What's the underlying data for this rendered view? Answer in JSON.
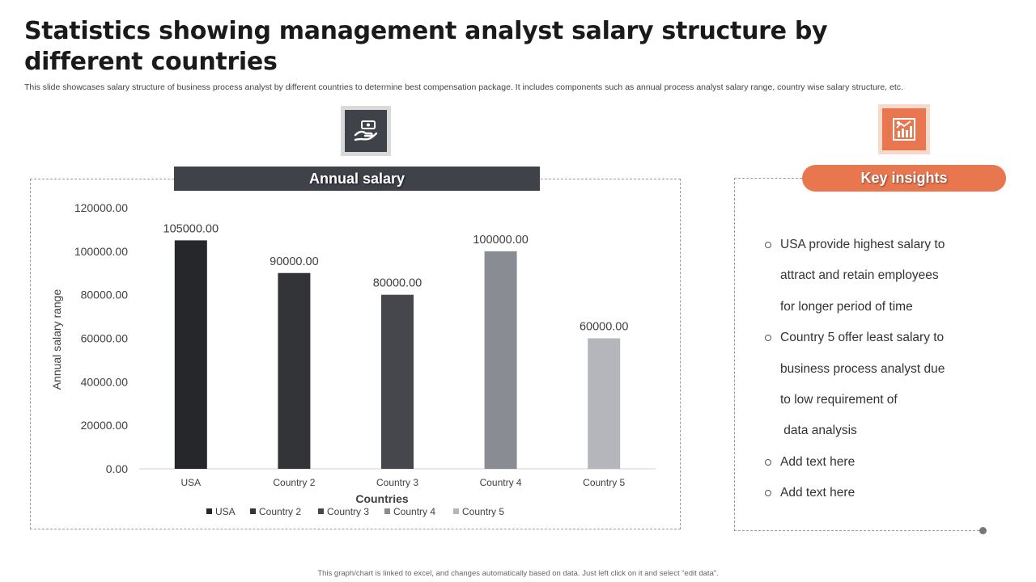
{
  "header": {
    "title": "Statistics showing management analyst salary structure by different countries",
    "subtitle": "This slide showcases salary structure of business process analyst by different countries to determine best compensation package. It includes components such as annual process analyst salary range, country wise salary structure, etc."
  },
  "icons": {
    "left": "money-hand-icon",
    "right": "growth-chart-icon"
  },
  "chart_banner": "Annual salary",
  "chart_data": {
    "type": "bar",
    "categories": [
      "USA",
      "Country 2",
      "Country 3",
      "Country 4",
      "Country 5"
    ],
    "values": [
      105000,
      90000,
      80000,
      100000,
      60000
    ],
    "data_labels": [
      "105000.00",
      "90000.00",
      "80000.00",
      "100000.00",
      "60000.00"
    ],
    "colors": [
      "#26272b",
      "#333438",
      "#45474d",
      "#8a8c94",
      "#b4b6bb"
    ],
    "xlabel": "Countries",
    "ylabel": "Annual salary range",
    "ylim": [
      0,
      120000
    ],
    "y_ticks": [
      0,
      20000,
      40000,
      60000,
      80000,
      100000,
      120000
    ],
    "y_tick_labels": [
      "0.00",
      "20000.00",
      "40000.00",
      "60000.00",
      "80000.00",
      "100000.00",
      "120000.00"
    ],
    "grid": false,
    "legend": "bottom",
    "legend_entries": [
      "USA",
      "Country 2",
      "Country 3",
      "Country 4",
      "Country 5"
    ]
  },
  "insights": {
    "title": "Key insights",
    "lines": [
      {
        "text": "USA provide highest salary to",
        "bullet": true
      },
      {
        "text": "attract and retain employees",
        "bullet": false
      },
      {
        "text": "for longer period of time",
        "bullet": false
      },
      {
        "text": "Country 5 offer least salary to",
        "bullet": true
      },
      {
        "text": "business process analyst due",
        "bullet": false
      },
      {
        "text": "to low requirement of",
        "bullet": false
      },
      {
        "text": " data analysis",
        "bullet": false
      },
      {
        "text": "Add text here",
        "bullet": true
      },
      {
        "text": "Add text here",
        "bullet": true
      }
    ]
  },
  "footnote": "This graph/chart is linked to excel, and changes automatically based on data. Just left click on it and select “edit data”."
}
